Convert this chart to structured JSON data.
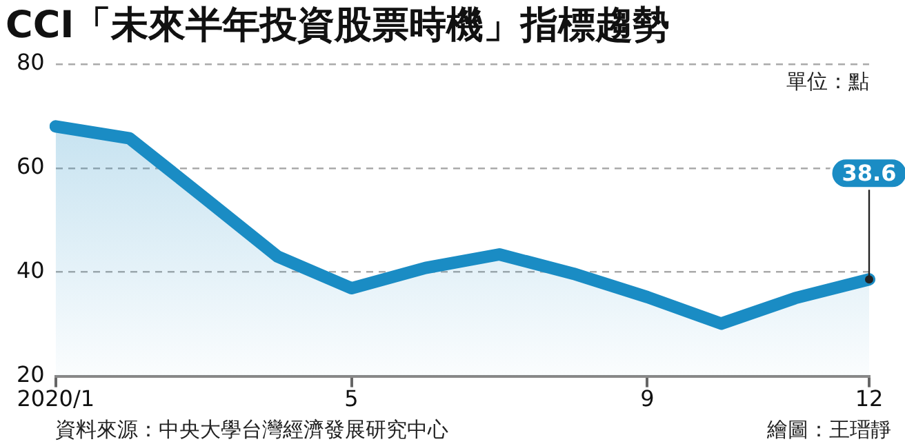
{
  "chart_data": {
    "type": "area",
    "title": "CCI「未來半年投資股票時機」指標趨勢",
    "categories": [
      "2020/1",
      null,
      null,
      null,
      "5",
      null,
      null,
      null,
      "9",
      null,
      null,
      "12"
    ],
    "series": [
      {
        "color": "#1a8cc4",
        "values": [
          68,
          65.7,
          54.4,
          43,
          36.9,
          40.8,
          43.4,
          39.7,
          35.2,
          30.1,
          35,
          38.6
        ],
        "value_labels": [
          null,
          null,
          null,
          null,
          null,
          null,
          null,
          null,
          null,
          null,
          null,
          "38.6"
        ]
      }
    ],
    "ylim": [
      20,
      80
    ],
    "yticks": [
      20,
      40,
      60,
      80
    ],
    "grid": "y",
    "legend": false,
    "marker": "none",
    "line_style": "solid",
    "annotations": [
      "單位：點",
      "資料來源：中央大學台灣經濟發展研究中心",
      "繪圖：王瑨靜"
    ]
  }
}
